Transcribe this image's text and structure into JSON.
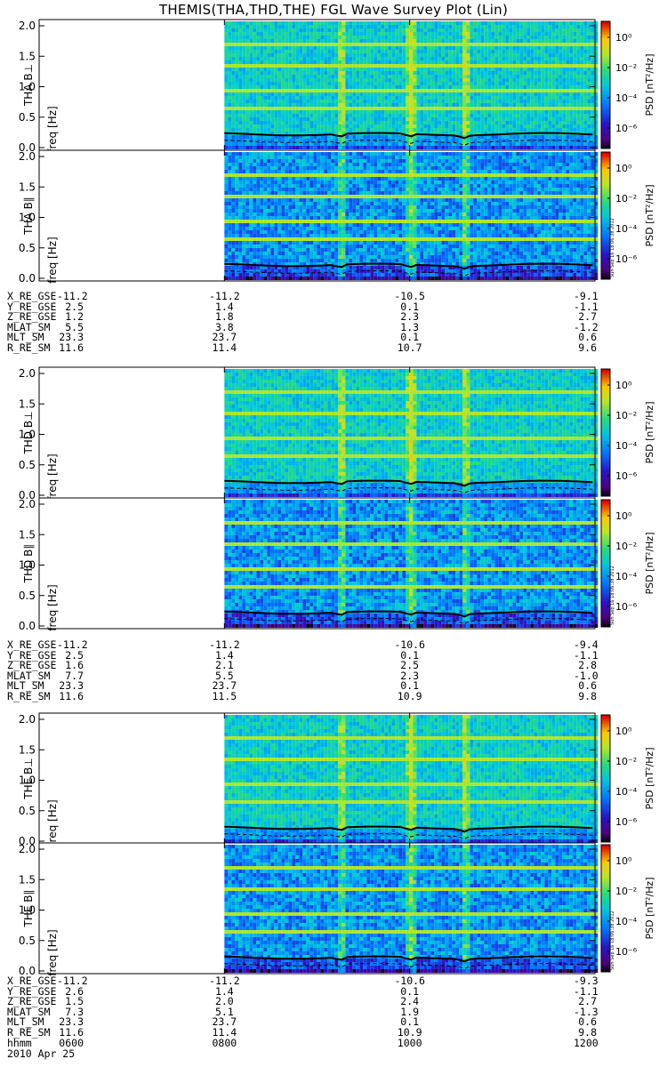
{
  "title": "THEMIS(THA,THD,THE) FGL Wave Survey Plot (Lin)",
  "colorbar": {
    "label": "PSD [nT²/Hz]",
    "ticks": [
      "10⁰",
      "10⁻²",
      "10⁻⁴",
      "10⁻⁶"
    ],
    "stamp": "Sun Sep 16 18:06:38 2012"
  },
  "panels": [
    {
      "id": "tha-bperp",
      "probe": "THA",
      "label": "THA B⊥",
      "ylabel": "freq [Hz]"
    },
    {
      "id": "tha-bpar",
      "probe": "THA",
      "label": "THA B∥",
      "ylabel": "freq [Hz]"
    },
    {
      "id": "thd-bperp",
      "probe": "THD",
      "label": "THD B⊥",
      "ylabel": "freq [Hz]"
    },
    {
      "id": "thd-bpar",
      "probe": "THD",
      "label": "THD B∥",
      "ylabel": "freq [Hz]"
    },
    {
      "id": "the-bperp",
      "probe": "THE",
      "label": "THE B⊥",
      "ylabel": "freq [Hz]"
    },
    {
      "id": "the-bpar",
      "probe": "THE",
      "label": "THE B∥",
      "ylabel": "freq [Hz]"
    }
  ],
  "ephemeris": {
    "THA": [
      {
        "label": "X_RE_GSE",
        "values": [
          "-11.2",
          "-11.2",
          "-10.5",
          "-9.1"
        ]
      },
      {
        "label": "Y_RE_GSE",
        "values": [
          "2.5",
          "1.4",
          "0.1",
          "-1.1"
        ]
      },
      {
        "label": "Z_RE_GSE",
        "values": [
          "1.2",
          "1.8",
          "2.3",
          "2.7"
        ]
      },
      {
        "label": "MLAT_SM",
        "values": [
          "5.5",
          "3.8",
          "1.3",
          "-1.2"
        ]
      },
      {
        "label": "MLT_SM",
        "values": [
          "23.3",
          "23.7",
          "0.1",
          "0.6"
        ]
      },
      {
        "label": "R_RE_SM",
        "values": [
          "11.6",
          "11.4",
          "10.7",
          "9.6"
        ]
      }
    ],
    "THD": [
      {
        "label": "X_RE_GSE",
        "values": [
          "-11.2",
          "-11.2",
          "-10.6",
          "-9.4"
        ]
      },
      {
        "label": "Y_RE_GSE",
        "values": [
          "2.5",
          "1.4",
          "0.1",
          "-1.1"
        ]
      },
      {
        "label": "Z_RE_GSE",
        "values": [
          "1.6",
          "2.1",
          "2.5",
          "2.8"
        ]
      },
      {
        "label": "MLAT_SM",
        "values": [
          "7.7",
          "5.5",
          "2.3",
          "-1.0"
        ]
      },
      {
        "label": "MLT_SM",
        "values": [
          "23.3",
          "23.7",
          "0.1",
          "0.6"
        ]
      },
      {
        "label": "R_RE_SM",
        "values": [
          "11.6",
          "11.5",
          "10.9",
          "9.8"
        ]
      }
    ],
    "THE": [
      {
        "label": "X_RE_GSE",
        "values": [
          "-11.2",
          "-11.2",
          "-10.6",
          "-9.3"
        ]
      },
      {
        "label": "Y_RE_GSE",
        "values": [
          "2.6",
          "1.4",
          "0.1",
          "-1.1"
        ]
      },
      {
        "label": "Z_RE_GSE",
        "values": [
          "1.5",
          "2.0",
          "2.4",
          "2.7"
        ]
      },
      {
        "label": "MLAT_SM",
        "values": [
          "7.3",
          "5.1",
          "1.9",
          "-1.3"
        ]
      },
      {
        "label": "MLT_SM",
        "values": [
          "23.3",
          "23.7",
          "0.1",
          "0.6"
        ]
      },
      {
        "label": "R_RE_SM",
        "values": [
          "11.6",
          "11.4",
          "10.9",
          "9.8"
        ]
      },
      {
        "label": "hhmm",
        "values": [
          "0600",
          "0800",
          "1000",
          "1200"
        ]
      }
    ]
  },
  "date_label": "2010 Apr 25",
  "chart_data": {
    "type": "heatmap",
    "title": "THEMIS(THA,THD,THE) FGL Wave Survey Plot (Lin)",
    "xlabel": "hhmm",
    "x_ticks": [
      "0600",
      "0800",
      "1000",
      "1200"
    ],
    "x_range": [
      "0600",
      "1200"
    ],
    "ylabel": "freq [Hz]",
    "ylim": [
      0,
      2.0
    ],
    "y_ticks": [
      0.0,
      0.5,
      1.0,
      1.5,
      2.0
    ],
    "colorbar": {
      "label": "PSD [nT²/Hz]",
      "range": [
        "10⁻⁶",
        "10⁰"
      ],
      "scale": "log"
    },
    "data_coverage_start": "0800",
    "panels": [
      "THA B⊥",
      "THA B∥",
      "THD B⊥",
      "THD B∥",
      "THE B⊥",
      "THE B∥"
    ],
    "bright_events_hhmm": [
      "0915",
      "1000",
      "1035"
    ],
    "harmonic_lines_hz": [
      0.65,
      0.95,
      1.3,
      1.65
    ],
    "cyclotron_line_hz": 0.22
  }
}
